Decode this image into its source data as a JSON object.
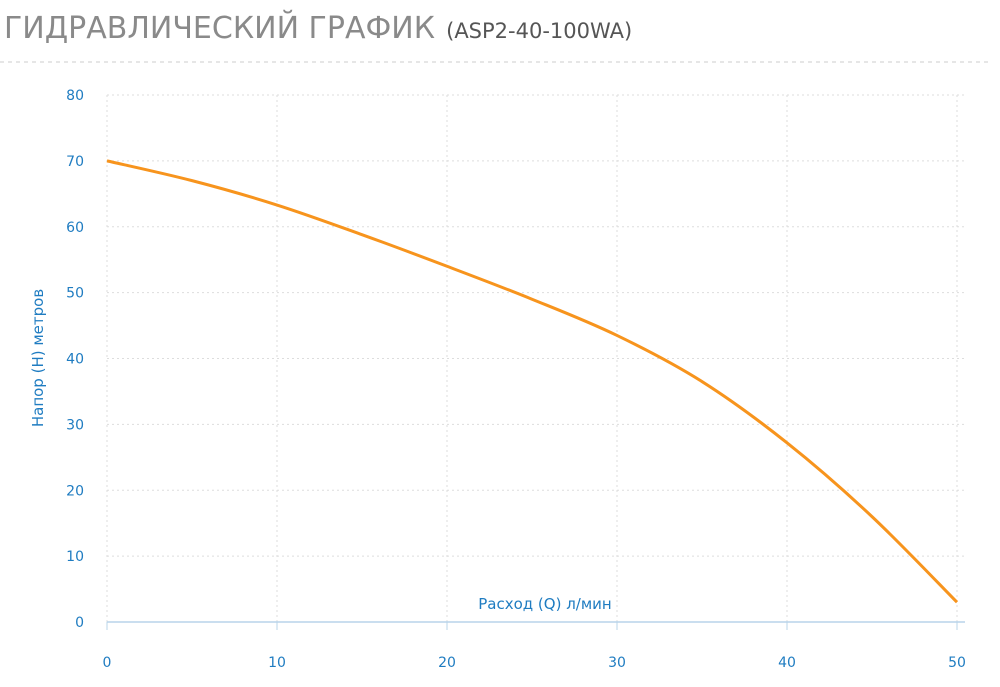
{
  "chart_data": {
    "type": "line",
    "title": "ГИДРАВЛИЧЕСКИЙ ГРАФИК",
    "subtitle": "(ASP2-40-100WA)",
    "x_label": "Расход (Q) л/мин",
    "y_label": "Напор (H) метров",
    "x": [
      0,
      5,
      10,
      15,
      20,
      25,
      30,
      35,
      40,
      45,
      50
    ],
    "series": [
      {
        "name": "ASP2-40-100WA",
        "color": "#f7941d",
        "values": [
          70,
          67,
          63.3,
          58.8,
          54,
          49,
          43.5,
          36.5,
          27.2,
          16,
          3
        ]
      }
    ],
    "xlim": [
      0,
      50
    ],
    "xticks": [
      0,
      10,
      20,
      30,
      40,
      50
    ],
    "ylim": [
      0,
      80
    ],
    "yticks": [
      0,
      10,
      20,
      30,
      40,
      50,
      60,
      70,
      80
    ],
    "grid": true
  }
}
